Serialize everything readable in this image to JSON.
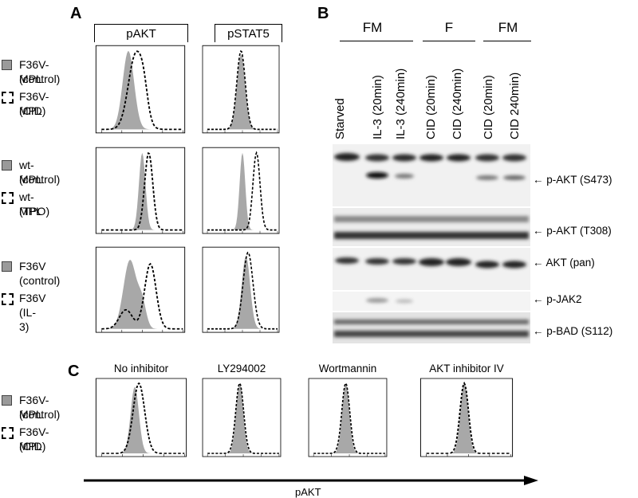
{
  "panels": {
    "A": "A",
    "B": "B",
    "C": "C"
  },
  "panelA": {
    "columns": [
      "pAKT",
      "pSTAT5"
    ],
    "rows": [
      {
        "control": [
          "F36V-MPL",
          "(control)"
        ],
        "treated": [
          "F36V-MPL",
          "(CID)"
        ]
      },
      {
        "control": [
          "wt-MPL",
          "(control)"
        ],
        "treated": [
          "wt-MPL",
          "(TPO)"
        ]
      },
      {
        "control": [
          "F36V",
          "(control)"
        ],
        "treated": [
          "F36V",
          "(IL-3)"
        ]
      }
    ]
  },
  "panelB": {
    "groups": [
      "FM",
      "F",
      "FM"
    ],
    "lanes": [
      "Starved",
      "IL-3 (20min)",
      "IL-3 (240min)",
      "CID (20min)",
      "CID (240min)",
      "CID (20min)",
      "CID 240min)"
    ],
    "bands": [
      "p-AKT (S473)",
      "p-AKT (T308)",
      "AKT (pan)",
      "p-JAK2",
      "p-BAD (S112)"
    ],
    "arrow": "←"
  },
  "panelC": {
    "titles": [
      "No inhibitor",
      "LY294002",
      "Wortmannin",
      "AKT inhibitor IV"
    ],
    "legend": {
      "control": [
        "F36V-MPL",
        "(control)"
      ],
      "treated": [
        "F36V-MPL",
        "(CID)"
      ]
    },
    "axis_label": "pAKT"
  },
  "colors": {
    "fill": "#a8a8a8",
    "dash": "#000000",
    "blot_bg": "#f0f0f0"
  }
}
